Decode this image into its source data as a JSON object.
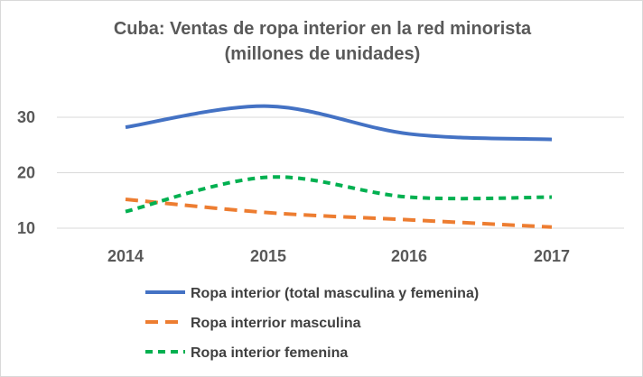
{
  "chart_data": {
    "type": "line",
    "title": "Cuba: Ventas de ropa interior en la red minorista",
    "subtitle": "(millones de unidades)",
    "xlabel": "",
    "ylabel": "",
    "categories": [
      "2014",
      "2015",
      "2016",
      "2017"
    ],
    "ylim": [
      10,
      30
    ],
    "yticks": [
      "10",
      "20",
      "30"
    ],
    "grid": true,
    "smooth": true,
    "legend_position": "bottom",
    "series": [
      {
        "name": "Ropa interior (total masculina y femenina)",
        "values": [
          28.2,
          32.0,
          27.0,
          26.0
        ],
        "color": "#4472c4",
        "dash": "solid"
      },
      {
        "name": "Ropa interrior masculina",
        "values": [
          15.2,
          12.8,
          11.5,
          10.2
        ],
        "color": "#ed7d31",
        "dash": "long-dash"
      },
      {
        "name": "Ropa interior femenina",
        "values": [
          13.0,
          19.2,
          15.6,
          15.6
        ],
        "color": "#00b050",
        "dash": "short-dash"
      }
    ]
  }
}
